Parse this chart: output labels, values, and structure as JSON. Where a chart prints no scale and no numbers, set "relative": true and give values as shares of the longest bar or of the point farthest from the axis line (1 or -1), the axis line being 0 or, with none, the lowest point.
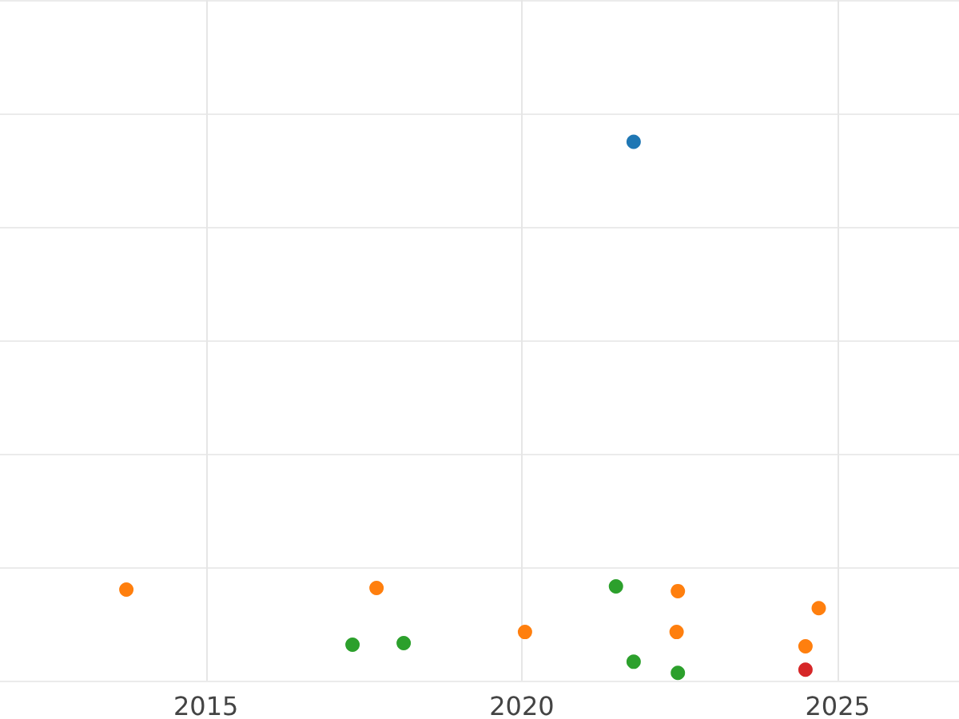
{
  "chart_data": {
    "type": "scatter",
    "relative": true,
    "grid": true,
    "marker": "circle",
    "xlim": [
      2011.74,
      2026.92
    ],
    "xticks": [
      2015,
      2020,
      2025
    ],
    "series": [
      {
        "color": "#1f77b4",
        "x": [
          2021.77
        ],
        "values": [
          1
        ]
      },
      {
        "color": "#ff7f0e",
        "x": [
          2013.74,
          2017.7,
          2020.05,
          2022.47,
          2022.45,
          2024.7,
          2024.49
        ],
        "values": [
          0.157,
          0.16,
          0.077,
          0.154,
          0.077,
          0.122,
          0.05
        ]
      },
      {
        "color": "#2ca02c",
        "x": [
          2017.32,
          2018.13,
          2021.49,
          2021.77,
          2022.47
        ],
        "values": [
          0.053,
          0.056,
          0.163,
          0.021,
          0
        ]
      },
      {
        "color": "#d62728",
        "x": [
          2024.49
        ],
        "values": [
          0.006
        ]
      }
    ]
  }
}
